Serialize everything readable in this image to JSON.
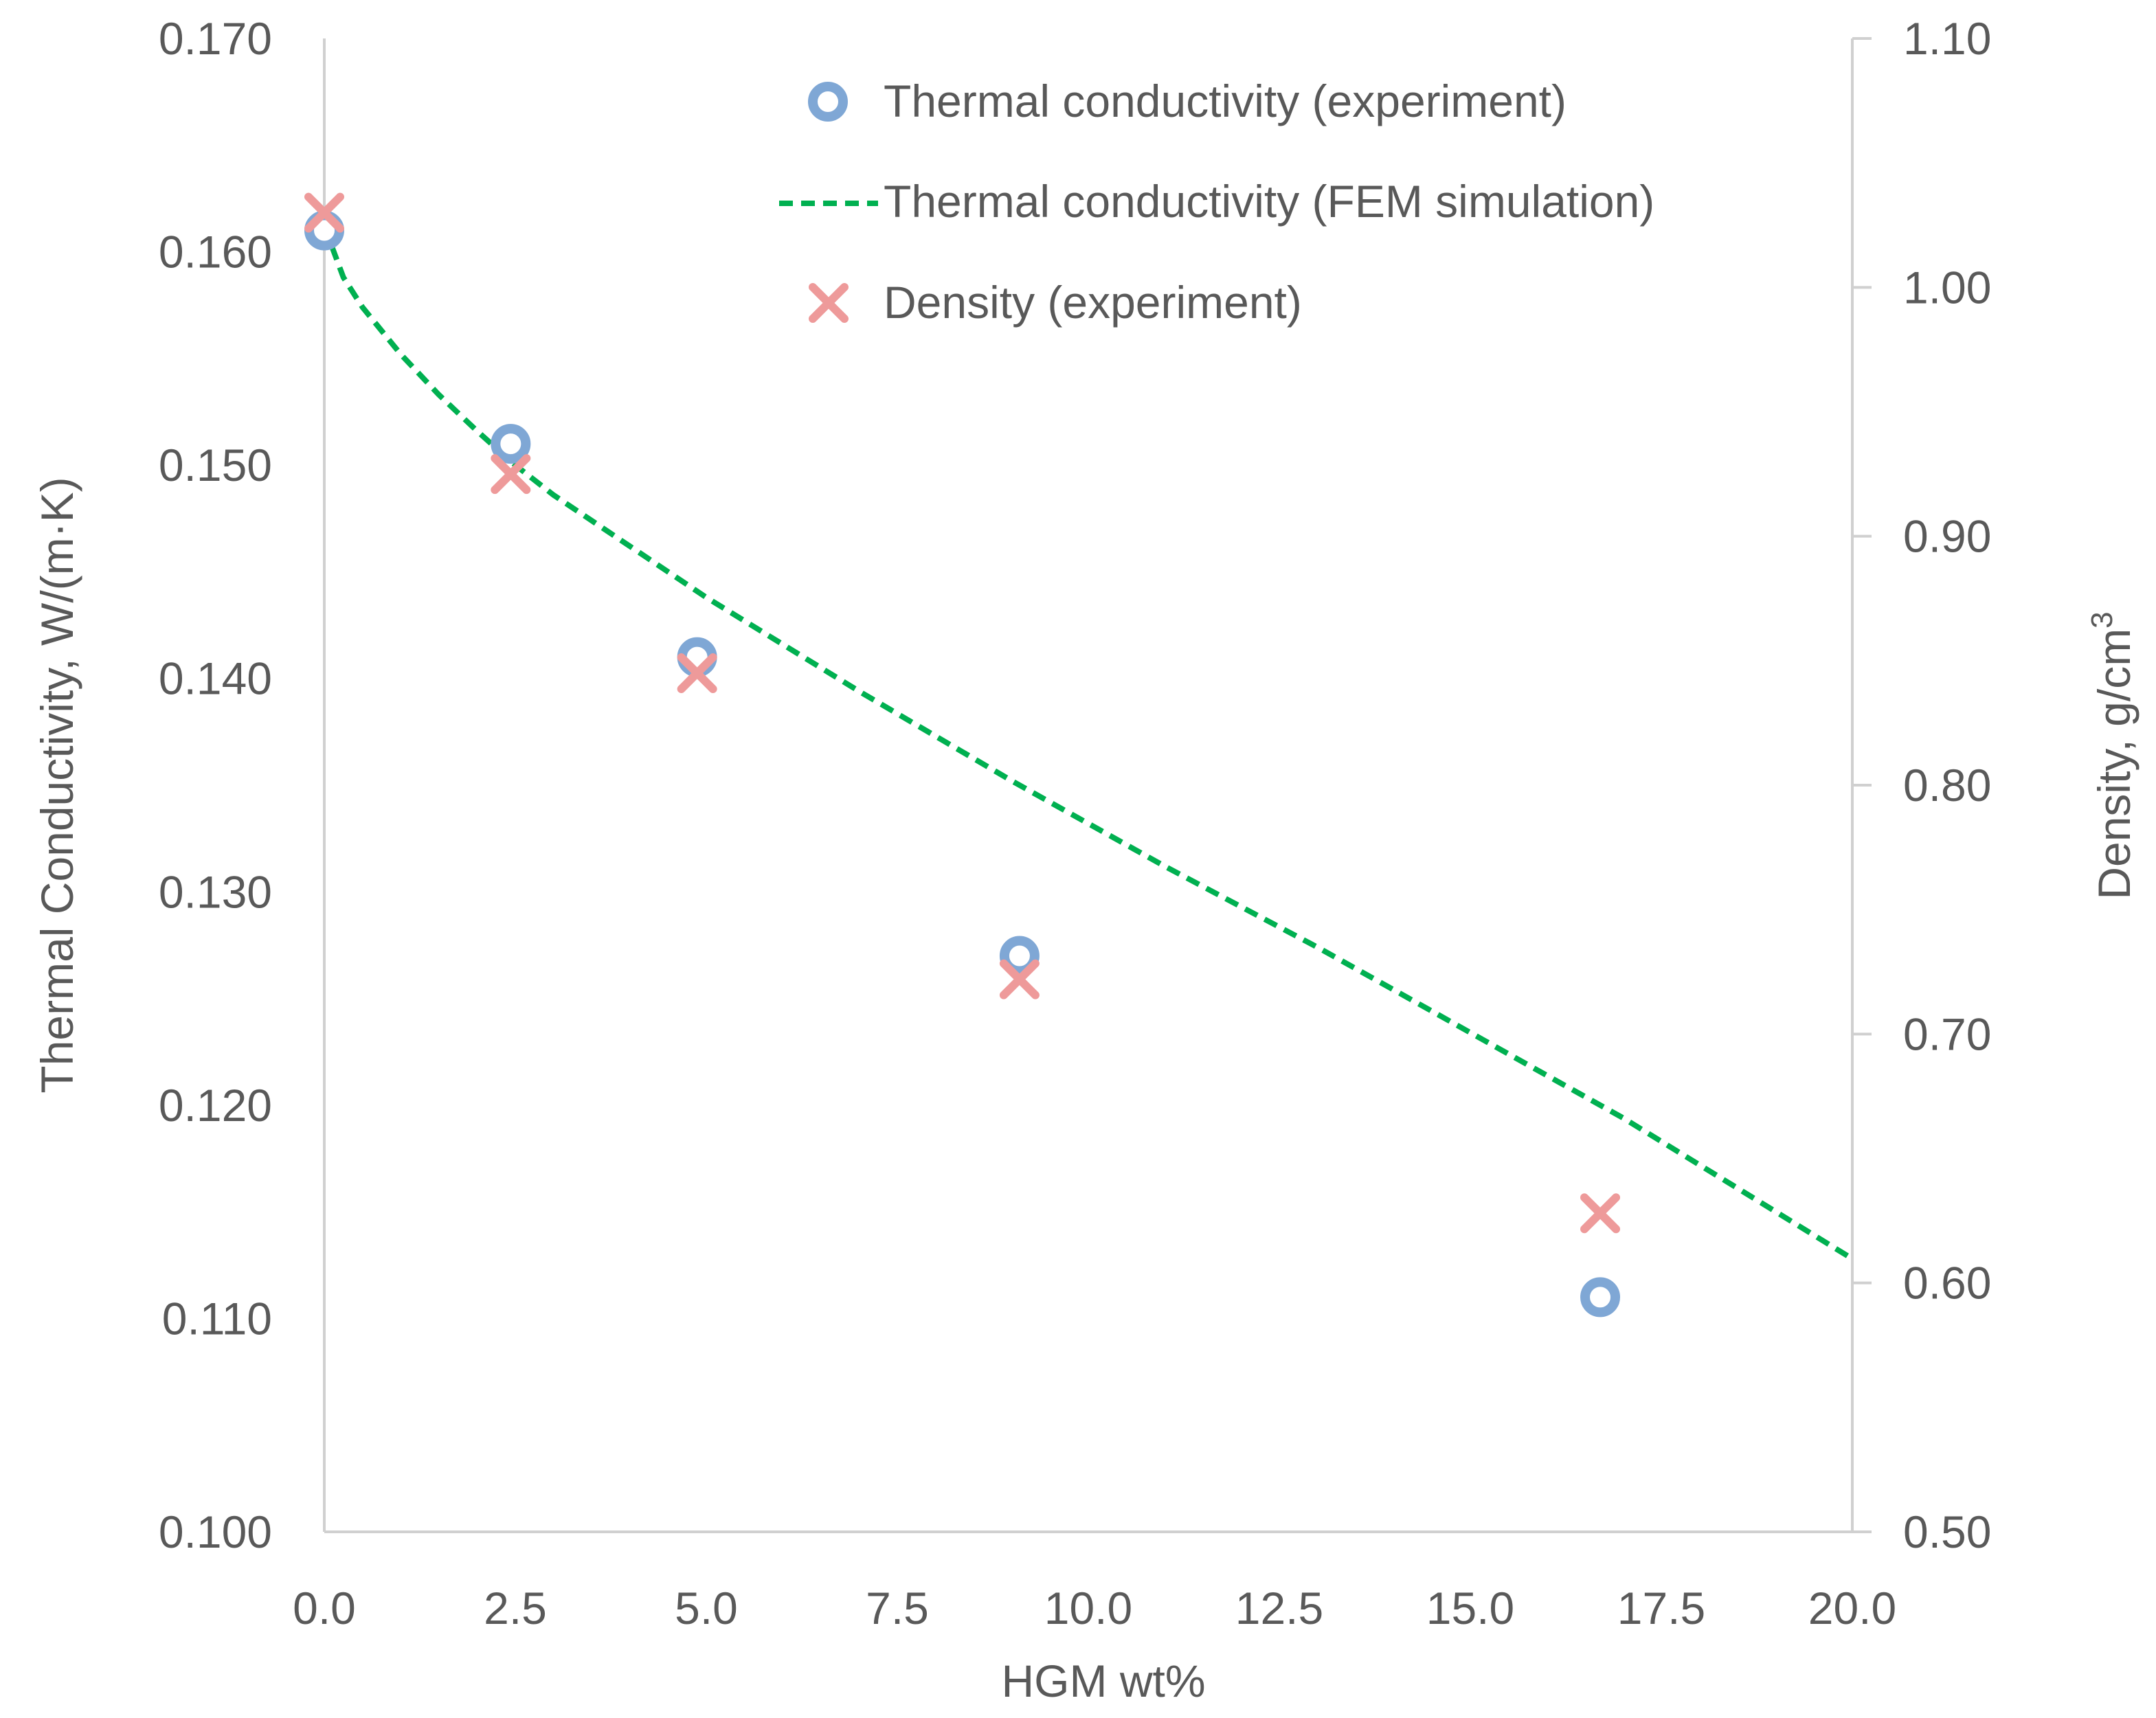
{
  "chart_data": {
    "type": "scatter",
    "title": "",
    "xlabel": "HGM wt%",
    "ylabel_left": "Thermal Conductivity, W/(m·K)",
    "ylabel_right": {
      "prefix": "Density, g/cm",
      "superscript": "3"
    },
    "xlim": [
      0,
      20
    ],
    "ylim_left": [
      0.1,
      0.17
    ],
    "ylim_right": [
      0.5,
      1.1
    ],
    "x_ticks": [
      "0.0",
      "2.5",
      "5.0",
      "7.5",
      "10.0",
      "12.5",
      "15.0",
      "17.5",
      "20.0"
    ],
    "x_tick_values": [
      0,
      2.5,
      5,
      7.5,
      10,
      12.5,
      15,
      17.5,
      20
    ],
    "y_left_ticks": [
      "0.100",
      "0.110",
      "0.120",
      "0.130",
      "0.140",
      "0.150",
      "0.160",
      "0.170"
    ],
    "y_left_tick_values": [
      0.1,
      0.11,
      0.12,
      0.13,
      0.14,
      0.15,
      0.16,
      0.17
    ],
    "y_right_ticks": [
      "0.50",
      "0.60",
      "0.70",
      "0.80",
      "0.90",
      "1.00",
      "1.10"
    ],
    "y_right_tick_values": [
      0.5,
      0.6,
      0.7,
      0.8,
      0.9,
      1.0,
      1.1
    ],
    "grid": false,
    "legend_position": "top-right",
    "series": [
      {
        "name": "Thermal conductivity (experiment)",
        "marker": "circle",
        "axis": "left",
        "color": "#7fa7d5",
        "x": [
          0,
          2.44,
          4.88,
          9.1,
          16.7
        ],
        "y": [
          0.161,
          0.151,
          0.141,
          0.127,
          0.111
        ]
      },
      {
        "name": "Thermal conductivity (FEM simulation)",
        "marker": "dashed-line",
        "axis": "left",
        "color": "#00b050",
        "x": [
          0,
          0.25,
          0.5,
          1,
          1.5,
          2,
          2.5,
          3,
          4,
          5,
          6,
          7,
          8,
          9,
          10,
          11,
          12,
          13,
          14,
          15,
          16,
          17,
          18,
          19,
          20
        ],
        "y": [
          0.1612,
          0.1588,
          0.1574,
          0.1552,
          0.1533,
          0.1516,
          0.15,
          0.1486,
          0.1462,
          0.1438,
          0.1416,
          0.1394,
          0.1373,
          0.1352,
          0.1332,
          0.1312,
          0.1293,
          0.1274,
          0.1254,
          0.1234,
          0.1214,
          0.1194,
          0.1172,
          0.115,
          0.1128
        ]
      },
      {
        "name": "Density (experiment)",
        "marker": "x",
        "axis": "right",
        "color": "#ee9a9a",
        "x": [
          0,
          2.44,
          4.88,
          9.1,
          16.7
        ],
        "y": [
          1.03,
          0.925,
          0.845,
          0.722,
          0.628
        ]
      }
    ]
  }
}
